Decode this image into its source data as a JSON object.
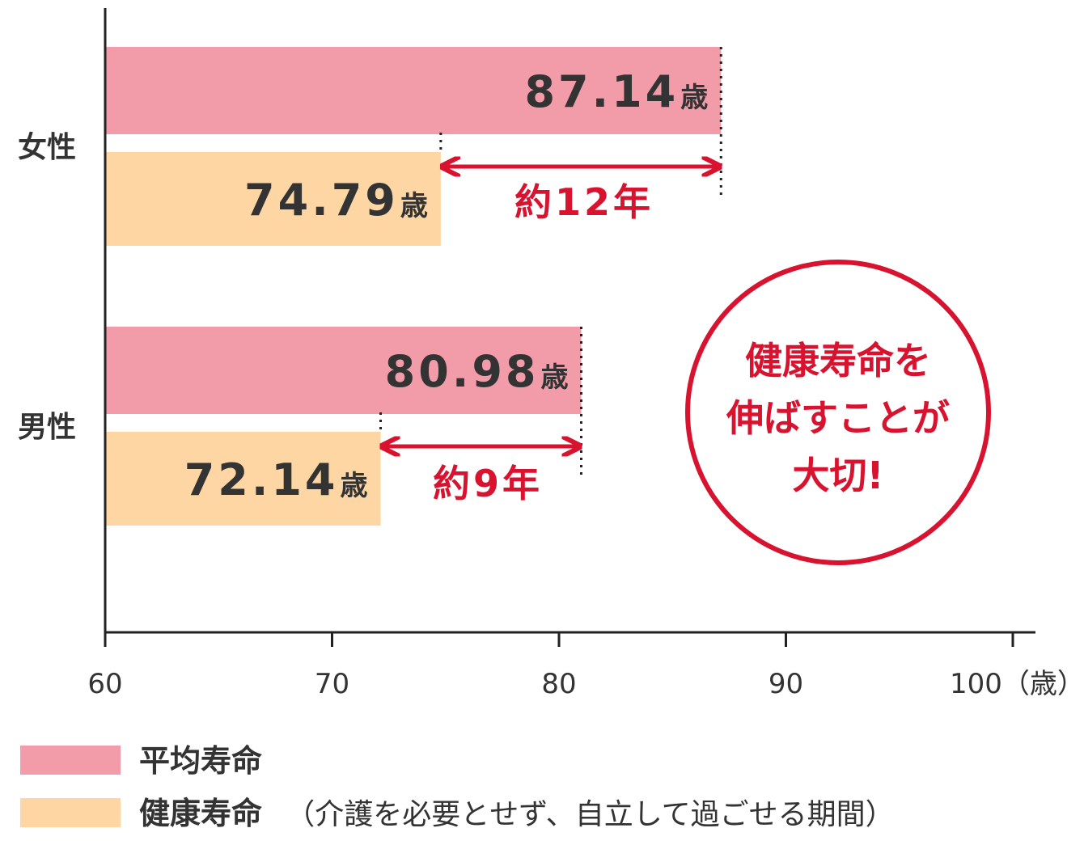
{
  "colors": {
    "life": "#f29caa",
    "healthy": "#fdd6a3",
    "accent": "#d7132f",
    "axis": "#222222",
    "text": "#333333"
  },
  "chart_data": {
    "type": "bar",
    "orientation": "horizontal",
    "categories": [
      "女性",
      "男性"
    ],
    "series": [
      {
        "name": "平均寿命",
        "values": [
          87.14,
          80.98
        ],
        "labels": [
          "87.14",
          "80.98"
        ]
      },
      {
        "name": "健康寿命",
        "values": [
          74.79,
          72.14
        ],
        "labels": [
          "74.79",
          "72.14"
        ]
      }
    ],
    "value_unit": "歳",
    "xlim": [
      60,
      100
    ],
    "xticks": [
      {
        "value": 60,
        "label": "60"
      },
      {
        "value": 70,
        "label": "70"
      },
      {
        "value": 80,
        "label": "80"
      },
      {
        "value": 90,
        "label": "90"
      },
      {
        "value": 100,
        "label": "100（歳）"
      }
    ],
    "gap_annotations": [
      "約12年",
      "約9年"
    ],
    "callout": [
      "健康寿命を",
      "伸ばすことが",
      "大切!"
    ],
    "legend": [
      {
        "label": "平均寿命",
        "note": ""
      },
      {
        "label": "健康寿命",
        "note": "（介護を必要とせず、自立して過ごせる期間）"
      }
    ],
    "legend_position": "bottom-left",
    "grid": false
  }
}
